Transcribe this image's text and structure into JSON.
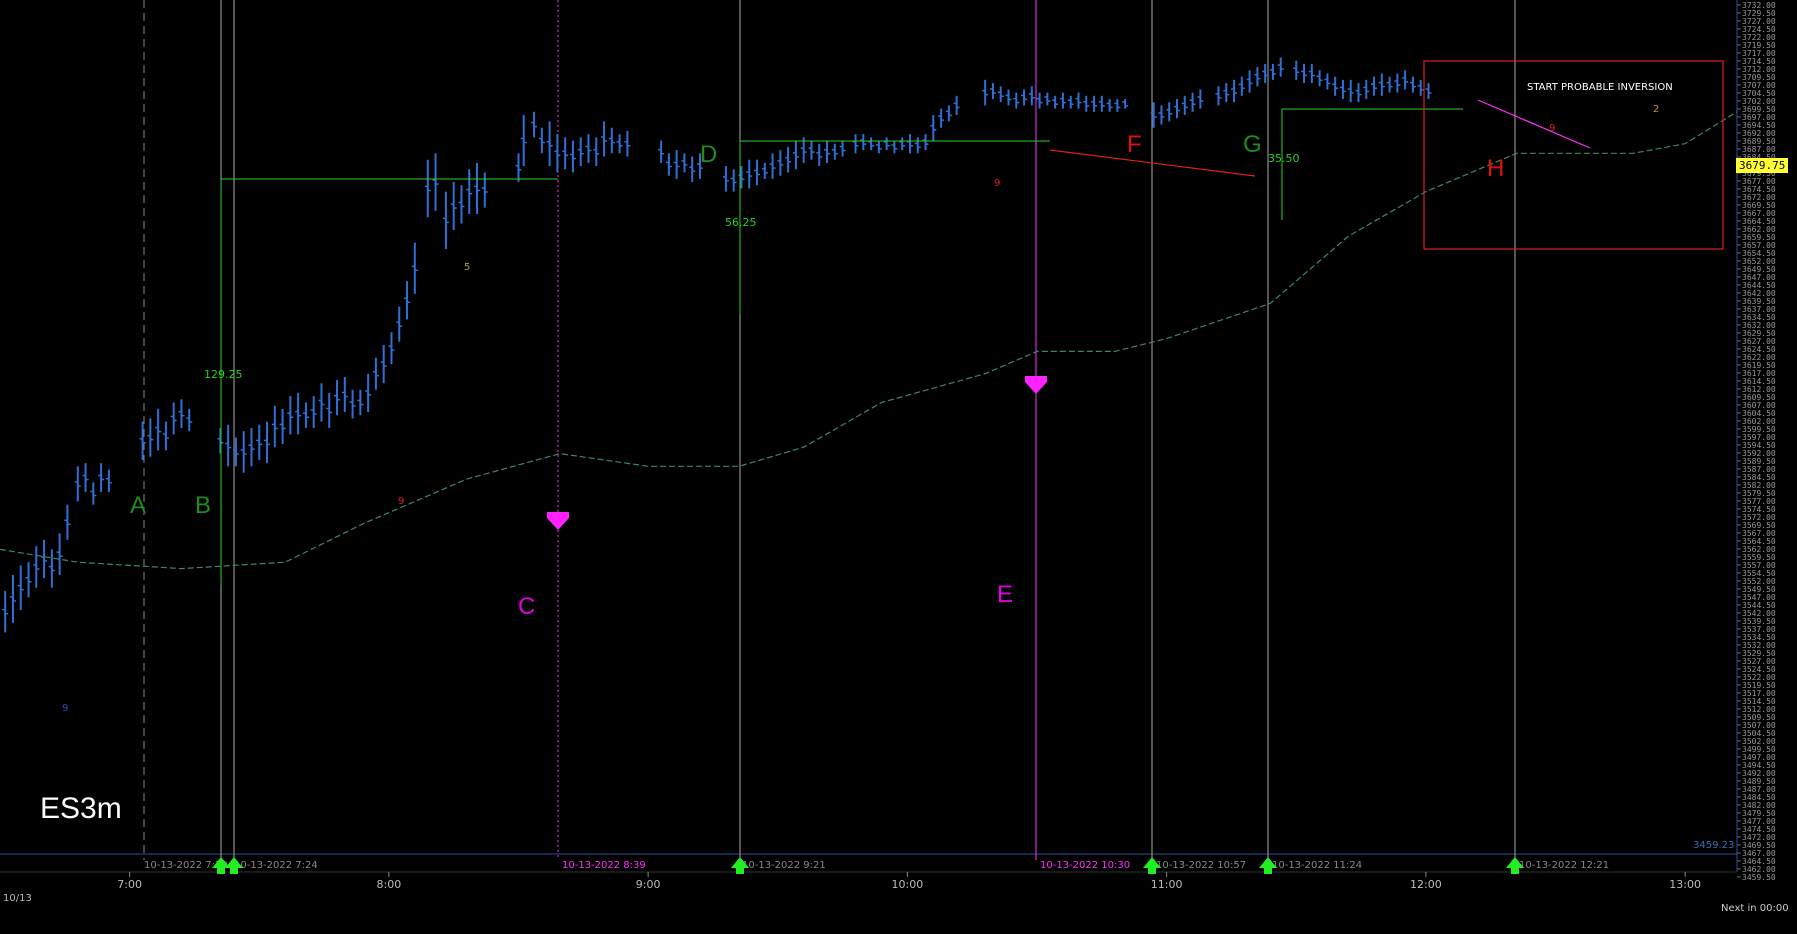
{
  "chart_data": {
    "type": "bar",
    "symbol": "ES3m",
    "title": "",
    "date": "10/13",
    "last_price": "3679.75",
    "low_value_label": "3459.23",
    "footer_right": "Next in 00:00",
    "ylim": [
      3459,
      3732
    ],
    "y_ticks_start": 3732,
    "y_ticks_step": -2.5,
    "x_labels": [
      "7:00",
      "8:00",
      "9:00",
      "10:00",
      "11:00",
      "12:00",
      "13:00"
    ],
    "x_label_times": [
      7.0,
      8.0,
      9.0,
      10.0,
      11.0,
      12.0,
      13.0
    ],
    "xlim": [
      6.5,
      13.2
    ],
    "bars": [
      [
        6.52,
        3547,
        3534
      ],
      [
        6.55,
        3552,
        3537
      ],
      [
        6.58,
        3555,
        3541
      ],
      [
        6.61,
        3556,
        3545
      ],
      [
        6.64,
        3561,
        3548
      ],
      [
        6.67,
        3563,
        3551
      ],
      [
        6.7,
        3560,
        3548
      ],
      [
        6.73,
        3565,
        3552
      ],
      [
        6.76,
        3574,
        3563
      ],
      [
        6.8,
        3586,
        3575
      ],
      [
        6.83,
        3587,
        3578
      ],
      [
        6.86,
        3581,
        3574
      ],
      [
        6.89,
        3587,
        3578
      ],
      [
        6.92,
        3585,
        3578
      ],
      [
        7.05,
        3600,
        3588
      ],
      [
        7.08,
        3601,
        3589
      ],
      [
        7.11,
        3604,
        3591
      ],
      [
        7.14,
        3600,
        3591
      ],
      [
        7.17,
        3606,
        3596
      ],
      [
        7.2,
        3607,
        3598
      ],
      [
        7.23,
        3604,
        3597
      ],
      [
        7.35,
        3598,
        3590
      ],
      [
        7.38,
        3599,
        3586
      ],
      [
        7.41,
        3595,
        3586
      ],
      [
        7.44,
        3597,
        3584
      ],
      [
        7.47,
        3598,
        3586
      ],
      [
        7.5,
        3599,
        3588
      ],
      [
        7.53,
        3600,
        3587
      ],
      [
        7.56,
        3605,
        3592
      ],
      [
        7.59,
        3604,
        3593
      ],
      [
        7.62,
        3608,
        3596
      ],
      [
        7.65,
        3609,
        3596
      ],
      [
        7.68,
        3606,
        3598
      ],
      [
        7.71,
        3608,
        3598
      ],
      [
        7.74,
        3612,
        3600
      ],
      [
        7.77,
        3609,
        3598
      ],
      [
        7.8,
        3613,
        3602
      ],
      [
        7.83,
        3614,
        3603
      ],
      [
        7.86,
        3610,
        3601
      ],
      [
        7.89,
        3610,
        3602
      ],
      [
        7.92,
        3615,
        3603
      ],
      [
        7.95,
        3620,
        3610
      ],
      [
        7.98,
        3624,
        3612
      ],
      [
        8.01,
        3628,
        3618
      ],
      [
        8.04,
        3636,
        3625
      ],
      [
        8.07,
        3644,
        3632
      ],
      [
        8.1,
        3656,
        3640
      ],
      [
        8.15,
        3682,
        3664
      ],
      [
        8.18,
        3684,
        3666
      ],
      [
        8.22,
        3672,
        3654
      ],
      [
        8.25,
        3675,
        3660
      ],
      [
        8.28,
        3674,
        3662
      ],
      [
        8.31,
        3679,
        3665
      ],
      [
        8.34,
        3681,
        3665
      ],
      [
        8.37,
        3678,
        3667
      ],
      [
        8.5,
        3684,
        3675
      ],
      [
        8.52,
        3696,
        3680
      ],
      [
        8.56,
        3697,
        3689
      ],
      [
        8.59,
        3692,
        3684
      ],
      [
        8.62,
        3694,
        3680
      ],
      [
        8.65,
        3690,
        3678
      ],
      [
        8.68,
        3689,
        3679
      ],
      [
        8.71,
        3688,
        3678
      ],
      [
        8.74,
        3689,
        3680
      ],
      [
        8.77,
        3690,
        3681
      ],
      [
        8.8,
        3689,
        3680
      ],
      [
        8.83,
        3694,
        3683
      ],
      [
        8.86,
        3692,
        3684
      ],
      [
        8.89,
        3690,
        3684
      ],
      [
        8.92,
        3691,
        3683
      ],
      [
        9.05,
        3688,
        3681
      ],
      [
        9.08,
        3684,
        3677
      ],
      [
        9.11,
        3685,
        3676
      ],
      [
        9.14,
        3684,
        3678
      ],
      [
        9.17,
        3683,
        3675
      ],
      [
        9.2,
        3684,
        3676
      ],
      [
        9.3,
        3680,
        3672
      ],
      [
        9.33,
        3679,
        3672
      ],
      [
        9.36,
        3680,
        3673
      ],
      [
        9.39,
        3682,
        3673
      ],
      [
        9.42,
        3682,
        3674
      ],
      [
        9.45,
        3681,
        3676
      ],
      [
        9.48,
        3684,
        3676
      ],
      [
        9.51,
        3685,
        3677
      ],
      [
        9.54,
        3686,
        3678
      ],
      [
        9.57,
        3688,
        3679
      ],
      [
        9.6,
        3689,
        3681
      ],
      [
        9.63,
        3688,
        3682
      ],
      [
        9.66,
        3687,
        3680
      ],
      [
        9.69,
        3688,
        3681
      ],
      [
        9.72,
        3687,
        3682
      ],
      [
        9.75,
        3688,
        3683
      ],
      [
        9.8,
        3690,
        3684
      ],
      [
        9.83,
        3690,
        3685
      ],
      [
        9.86,
        3689,
        3685
      ],
      [
        9.89,
        3688,
        3684
      ],
      [
        9.92,
        3689,
        3685
      ],
      [
        9.95,
        3688,
        3684
      ],
      [
        9.98,
        3689,
        3685
      ],
      [
        10.01,
        3690,
        3684
      ],
      [
        10.04,
        3689,
        3684
      ],
      [
        10.07,
        3690,
        3685
      ],
      [
        10.1,
        3696,
        3688
      ],
      [
        10.13,
        3698,
        3692
      ],
      [
        10.16,
        3699,
        3694
      ],
      [
        10.19,
        3702,
        3696
      ],
      [
        10.3,
        3707,
        3699
      ],
      [
        10.33,
        3706,
        3701
      ],
      [
        10.36,
        3705,
        3700
      ],
      [
        10.39,
        3704,
        3699
      ],
      [
        10.42,
        3703,
        3698
      ],
      [
        10.45,
        3704,
        3699
      ],
      [
        10.48,
        3705,
        3699
      ],
      [
        10.51,
        3703,
        3698
      ],
      [
        10.54,
        3703,
        3699
      ],
      [
        10.57,
        3702,
        3698
      ],
      [
        10.6,
        3703,
        3698
      ],
      [
        10.63,
        3702,
        3698
      ],
      [
        10.66,
        3703,
        3698
      ],
      [
        10.69,
        3702,
        3697
      ],
      [
        10.72,
        3702,
        3697
      ],
      [
        10.75,
        3702,
        3697
      ],
      [
        10.78,
        3701,
        3697
      ],
      [
        10.81,
        3701,
        3697
      ],
      [
        10.84,
        3701,
        3698
      ],
      [
        10.95,
        3700,
        3692
      ],
      [
        10.98,
        3699,
        3693
      ],
      [
        11.01,
        3700,
        3694
      ],
      [
        11.04,
        3701,
        3695
      ],
      [
        11.07,
        3702,
        3696
      ],
      [
        11.1,
        3703,
        3697
      ],
      [
        11.13,
        3704,
        3698
      ],
      [
        11.2,
        3705,
        3699
      ],
      [
        11.23,
        3706,
        3700
      ],
      [
        11.26,
        3707,
        3700
      ],
      [
        11.29,
        3708,
        3702
      ],
      [
        11.32,
        3710,
        3703
      ],
      [
        11.35,
        3711,
        3705
      ],
      [
        11.38,
        3712,
        3706
      ],
      [
        11.41,
        3712,
        3707
      ],
      [
        11.44,
        3714,
        3708
      ],
      [
        11.5,
        3713,
        3707
      ],
      [
        11.53,
        3712,
        3706
      ],
      [
        11.56,
        3712,
        3706
      ],
      [
        11.59,
        3710,
        3705
      ],
      [
        11.62,
        3709,
        3704
      ],
      [
        11.65,
        3708,
        3702
      ],
      [
        11.68,
        3707,
        3701
      ],
      [
        11.71,
        3707,
        3700
      ],
      [
        11.74,
        3706,
        3700
      ],
      [
        11.77,
        3707,
        3701
      ],
      [
        11.8,
        3708,
        3702
      ],
      [
        11.83,
        3709,
        3702
      ],
      [
        11.86,
        3708,
        3703
      ],
      [
        11.89,
        3709,
        3703
      ],
      [
        11.92,
        3710,
        3704
      ],
      [
        11.95,
        3708,
        3703
      ],
      [
        11.98,
        3707,
        3702
      ],
      [
        12.01,
        3706,
        3701
      ]
    ],
    "bar_times_note": "",
    "moving_average": [
      [
        6.5,
        3560
      ],
      [
        6.8,
        3556
      ],
      [
        7.2,
        3554
      ],
      [
        7.6,
        3556
      ],
      [
        7.9,
        3568
      ],
      [
        8.3,
        3582
      ],
      [
        8.66,
        3590
      ],
      [
        9.0,
        3586
      ],
      [
        9.35,
        3586
      ],
      [
        9.6,
        3592
      ],
      [
        9.9,
        3606
      ],
      [
        10.3,
        3615
      ],
      [
        10.5,
        3622
      ],
      [
        10.8,
        3622
      ],
      [
        11.0,
        3626
      ],
      [
        11.4,
        3637
      ],
      [
        11.7,
        3658
      ],
      [
        12.0,
        3672
      ],
      [
        12.35,
        3684
      ],
      [
        12.8,
        3684
      ],
      [
        13.0,
        3687
      ],
      [
        13.2,
        3697
      ]
    ],
    "annotations": [
      {
        "text": "A",
        "color": "#1e8c1e"
      },
      {
        "text": "B",
        "color": "#1e8c1e"
      },
      {
        "text": "C",
        "color": "#e000e0"
      },
      {
        "text": "D",
        "color": "#1e8c1e"
      },
      {
        "text": "E",
        "color": "#e000e0"
      },
      {
        "text": "F",
        "color": "#e01010"
      },
      {
        "text": "G",
        "color": "#1e8c1e"
      },
      {
        "text": "H",
        "color": "#e01010"
      }
    ],
    "measurements": [
      "129.25",
      "56.25",
      "35.50"
    ],
    "small_counts": [
      "9",
      "5",
      "9",
      "9",
      "9",
      "2"
    ],
    "inversion_label": "START PROBABLE INVERSION",
    "time_markers": [
      {
        "label": "10-13-2022 7:20",
        "color": "#888888"
      },
      {
        "label": "10-13-2022 7:24",
        "color": "#888888"
      },
      {
        "label": "10-13-2022 8:39",
        "color": "#ff33ff"
      },
      {
        "label": "10-13-2022 9:21",
        "color": "#888888"
      },
      {
        "label": "10-13-2022 10:30",
        "color": "#ff33ff"
      },
      {
        "label": "10-13-2022 10:57",
        "color": "#888888"
      },
      {
        "label": "10-13-2022 11:24",
        "color": "#888888"
      },
      {
        "label": "10-13-2022 12:21",
        "color": "#888888"
      }
    ],
    "grid": false,
    "colors": {
      "bars": "#2f6fd6",
      "ma": "#3c8a5c",
      "green": "#2ccf2c",
      "magenta": "#ff33ff",
      "red": "#e02020",
      "axis": "#2b4f9e"
    }
  }
}
